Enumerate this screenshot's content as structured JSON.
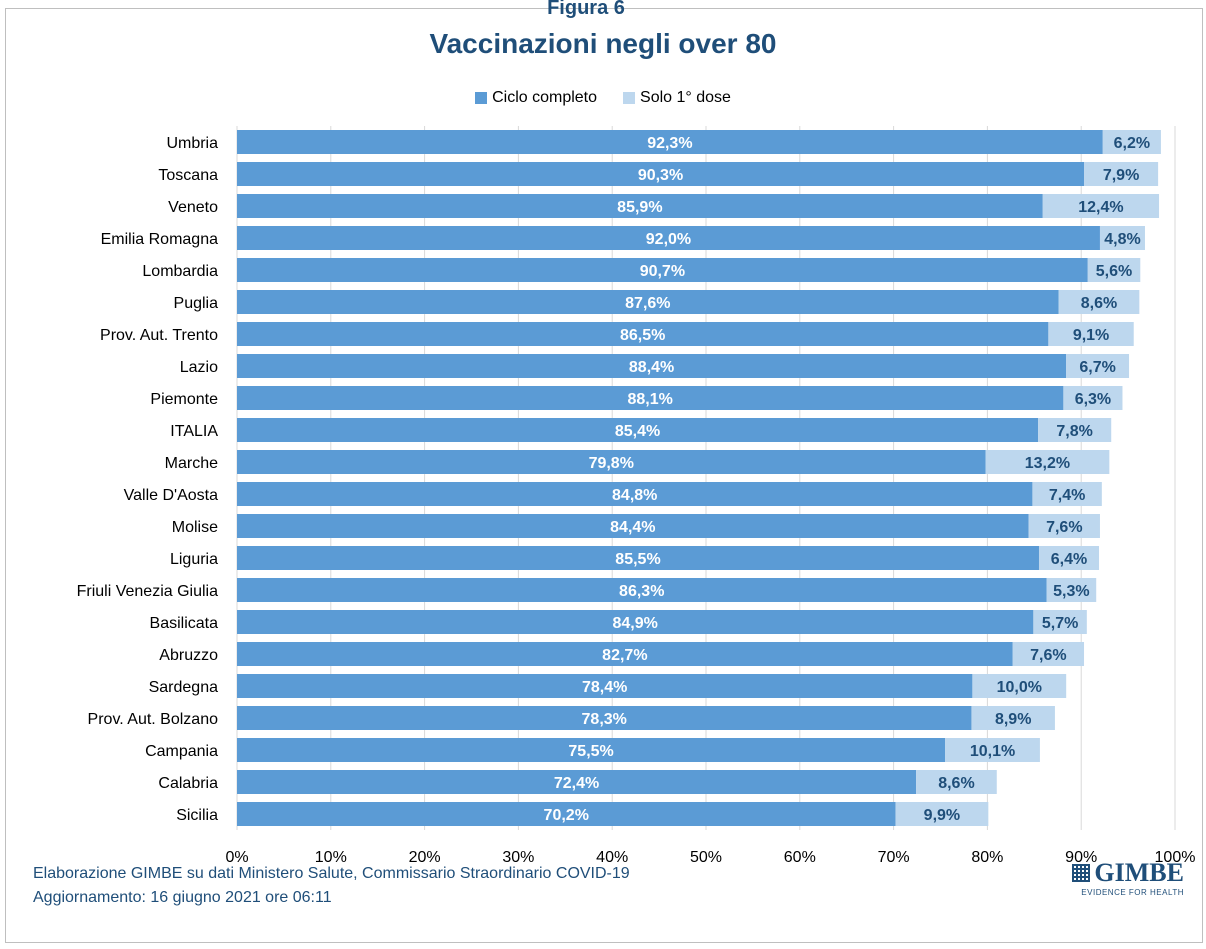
{
  "header": {
    "figure_label": "Figura 6"
  },
  "footer": {
    "source": "Elaborazione GIMBE su dati Ministero Salute, Commissario Straordinario COVID-19",
    "updated": "Aggiornamento: 16 giugno 2021 ore 06:11"
  },
  "logo": {
    "name": "GIMBE",
    "tagline": "EVIDENCE FOR HEALTH"
  },
  "colors": {
    "complete": "#5b9bd5",
    "first_dose": "#bdd7ee",
    "title": "#1f4e79",
    "label_dark": "#1f4e79"
  },
  "chart_data": {
    "type": "bar",
    "orientation": "horizontal",
    "stacked": true,
    "title": "Vaccinazioni negli over 80",
    "legend_position": "top",
    "grid": true,
    "xlim": [
      0,
      100
    ],
    "x_ticks": [
      "0%",
      "10%",
      "20%",
      "30%",
      "40%",
      "50%",
      "60%",
      "70%",
      "80%",
      "90%",
      "100%"
    ],
    "categories": [
      "Umbria",
      "Toscana",
      "Veneto",
      "Emilia Romagna",
      "Lombardia",
      "Puglia",
      "Prov. Aut. Trento",
      "Lazio",
      "Piemonte",
      "ITALIA",
      "Marche",
      "Valle D'Aosta",
      "Molise",
      "Liguria",
      "Friuli Venezia Giulia",
      "Basilicata",
      "Abruzzo",
      "Sardegna",
      "Prov. Aut. Bolzano",
      "Campania",
      "Calabria",
      "Sicilia"
    ],
    "series": [
      {
        "name": "Ciclo completo",
        "values": [
          92.3,
          90.3,
          85.9,
          92.0,
          90.7,
          87.6,
          86.5,
          88.4,
          88.1,
          85.4,
          79.8,
          84.8,
          84.4,
          85.5,
          86.3,
          84.9,
          82.7,
          78.4,
          78.3,
          75.5,
          72.4,
          70.2
        ],
        "labels": [
          "92,3%",
          "90,3%",
          "85,9%",
          "92,0%",
          "90,7%",
          "87,6%",
          "86,5%",
          "88,4%",
          "88,1%",
          "85,4%",
          "79,8%",
          "84,8%",
          "84,4%",
          "85,5%",
          "86,3%",
          "84,9%",
          "82,7%",
          "78,4%",
          "78,3%",
          "75,5%",
          "72,4%",
          "70,2%"
        ]
      },
      {
        "name": "Solo 1° dose",
        "values": [
          6.2,
          7.9,
          12.4,
          4.8,
          5.6,
          8.6,
          9.1,
          6.7,
          6.3,
          7.8,
          13.2,
          7.4,
          7.6,
          6.4,
          5.3,
          5.7,
          7.6,
          10.0,
          8.9,
          10.1,
          8.6,
          9.9
        ],
        "labels": [
          "6,2%",
          "7,9%",
          "12,4%",
          "4,8%",
          "5,6%",
          "8,6%",
          "9,1%",
          "6,7%",
          "6,3%",
          "7,8%",
          "13,2%",
          "7,4%",
          "7,6%",
          "6,4%",
          "5,3%",
          "5,7%",
          "7,6%",
          "10,0%",
          "8,9%",
          "10,1%",
          "8,6%",
          "9,9%"
        ]
      }
    ]
  }
}
